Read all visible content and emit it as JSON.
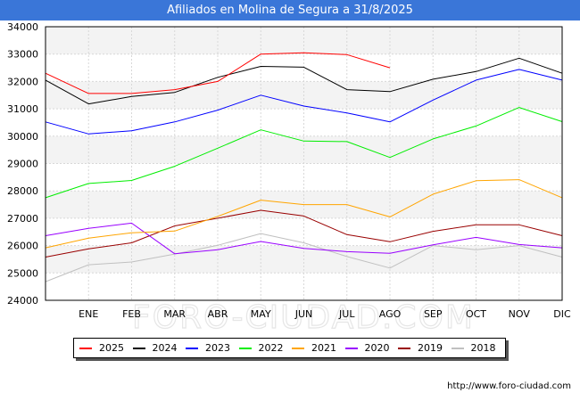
{
  "title": "Afiliados en Molina de Segura a 31/8/2025",
  "source": "http://www.foro-ciudad.com",
  "watermark": "FORO-CIUDAD.COM",
  "chart_data": {
    "type": "line",
    "title": "Afiliados en Molina de Segura a 31/8/2025",
    "xlabel": "",
    "ylabel": "",
    "categories": [
      "",
      "ENE",
      "FEB",
      "MAR",
      "ABR",
      "MAY",
      "JUN",
      "JUL",
      "AGO",
      "SEP",
      "OCT",
      "NOV",
      "DIC"
    ],
    "ylim": [
      24000,
      34000
    ],
    "yticks": [
      "24000",
      "25000",
      "26000",
      "27000",
      "28000",
      "29000",
      "30000",
      "31000",
      "32000",
      "33000",
      "34000"
    ],
    "grid": true,
    "legend_position": "bottom",
    "series": [
      {
        "name": "2025",
        "color": "#ff0000",
        "values": [
          32300,
          31560,
          31560,
          31700,
          32000,
          33000,
          33050,
          32980,
          32500,
          null,
          null,
          null,
          null
        ]
      },
      {
        "name": "2024",
        "color": "#000000",
        "values": [
          32050,
          31180,
          31450,
          31600,
          32150,
          32550,
          32520,
          31700,
          31630,
          32080,
          32360,
          32850,
          32300
        ]
      },
      {
        "name": "2023",
        "color": "#0000ff",
        "values": [
          30520,
          30080,
          30200,
          30520,
          30950,
          31500,
          31100,
          30850,
          30520,
          31320,
          32050,
          32440,
          32050
        ]
      },
      {
        "name": "2022",
        "color": "#00ee00",
        "values": [
          27750,
          28270,
          28380,
          28900,
          29560,
          30230,
          29820,
          29800,
          29220,
          29900,
          30370,
          31050,
          30530
        ]
      },
      {
        "name": "2021",
        "color": "#ffa500",
        "values": [
          25920,
          26270,
          26470,
          26530,
          27070,
          27660,
          27500,
          27500,
          27050,
          27880,
          28370,
          28410,
          27750
        ]
      },
      {
        "name": "2020",
        "color": "#9900ff",
        "values": [
          26360,
          26630,
          26820,
          25700,
          25850,
          26150,
          25900,
          25780,
          25720,
          26030,
          26300,
          26040,
          25920
        ]
      },
      {
        "name": "2019",
        "color": "#990000",
        "values": [
          25580,
          25880,
          26100,
          26720,
          27000,
          27290,
          27080,
          26400,
          26140,
          26520,
          26760,
          26760,
          26360
        ]
      },
      {
        "name": "2018",
        "color": "#c0c0c0",
        "values": [
          24680,
          25300,
          25400,
          25690,
          26010,
          26440,
          26100,
          25600,
          25180,
          26000,
          25850,
          26000,
          25580
        ]
      }
    ]
  }
}
